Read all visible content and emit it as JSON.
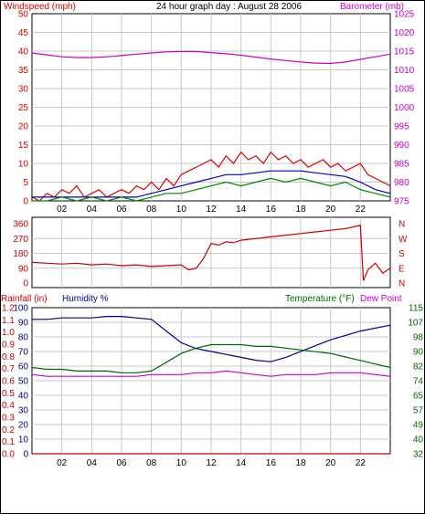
{
  "header": {
    "left_label": "Windspeed (mph)",
    "title": "24 hour graph day : August 28 2006",
    "right_label": "Barometer (mb)"
  },
  "bottom_header": {
    "rainfall_label": "Rainfall (in)",
    "humidity_label": "Humidity %",
    "temperature_label": "Temperature (°F)",
    "dewpoint_label": "Dew Point"
  },
  "colors": {
    "windspeed": "#dd0000",
    "wind_avg": "#0000cc",
    "wind_green": "#008800",
    "barometer": "#cc00cc",
    "direction": "#cc0000",
    "humidity": "#00008b",
    "temperature": "#006600",
    "dewpoint": "#cc00cc",
    "rainfall": "#cc0000",
    "grid": "#c8c8c8"
  },
  "x_ticks": [
    "02",
    "04",
    "06",
    "08",
    "10",
    "12",
    "14",
    "16",
    "18",
    "20",
    "22"
  ],
  "chart_data": [
    {
      "type": "line",
      "name": "wind_barometer",
      "title": "24 hour graph day : August 28 2006",
      "x_range": [
        0,
        24
      ],
      "left_axis": {
        "label": "Windspeed (mph)",
        "range": [
          0,
          50
        ],
        "ticks": [
          "0",
          "5",
          "10",
          "15",
          "20",
          "25",
          "30",
          "35",
          "40",
          "45",
          "50"
        ]
      },
      "right_axis": {
        "label": "Barometer (mb)",
        "range": [
          975,
          1025
        ],
        "ticks": [
          "975",
          "980",
          "985",
          "990",
          "995",
          "1000",
          "1005",
          "1010",
          "1015",
          "1020",
          "1025"
        ]
      },
      "series": [
        {
          "name": "Windspeed",
          "axis": "left",
          "color_key": "windspeed",
          "x": [
            0,
            0.5,
            1,
            1.5,
            2,
            2.5,
            3,
            3.5,
            4,
            4.5,
            5,
            5.5,
            6,
            6.5,
            7,
            7.5,
            8,
            8.5,
            9,
            9.5,
            10,
            10.5,
            11,
            11.5,
            12,
            12.5,
            13,
            13.5,
            14,
            14.5,
            15,
            15.5,
            16,
            16.5,
            17,
            17.5,
            18,
            18.5,
            19,
            19.5,
            20,
            20.5,
            21,
            21.5,
            22,
            22.5,
            23,
            23.5,
            24
          ],
          "y": [
            1,
            0,
            2,
            1,
            3,
            2,
            4,
            1,
            2,
            3,
            1,
            2,
            3,
            2,
            4,
            3,
            5,
            3,
            6,
            4,
            7,
            8,
            9,
            10,
            11,
            9,
            12,
            10,
            13,
            11,
            12,
            10,
            13,
            11,
            12,
            10,
            11,
            9,
            10,
            11,
            9,
            10,
            8,
            9,
            10,
            7,
            6,
            5,
            4
          ]
        },
        {
          "name": "Windspeed average",
          "axis": "left",
          "color_key": "wind_avg",
          "x": [
            0,
            1,
            2,
            3,
            4,
            5,
            6,
            7,
            8,
            9,
            10,
            11,
            12,
            13,
            14,
            15,
            16,
            17,
            18,
            19,
            20,
            21,
            22,
            23,
            24
          ],
          "y": [
            1,
            1,
            1,
            1,
            1,
            1,
            1,
            1,
            2,
            3,
            4,
            5,
            6,
            7,
            7,
            7.5,
            8,
            8,
            8,
            7.5,
            7,
            6.5,
            5,
            3,
            2
          ]
        },
        {
          "name": "Wind low",
          "axis": "left",
          "color_key": "wind_green",
          "x": [
            0,
            1,
            2,
            3,
            4,
            5,
            6,
            7,
            8,
            9,
            10,
            11,
            12,
            13,
            14,
            15,
            16,
            17,
            18,
            19,
            20,
            21,
            22,
            23,
            24
          ],
          "y": [
            0,
            0,
            1,
            0,
            1,
            0,
            1,
            0,
            1,
            2,
            2,
            3,
            4,
            5,
            4,
            5,
            6,
            5,
            6,
            5,
            4,
            5,
            3,
            2,
            1
          ]
        },
        {
          "name": "Barometer",
          "axis": "right",
          "color_key": "barometer",
          "x": [
            0,
            1,
            2,
            3,
            4,
            5,
            6,
            7,
            8,
            9,
            10,
            11,
            12,
            13,
            14,
            15,
            16,
            17,
            18,
            19,
            20,
            21,
            22,
            23,
            24
          ],
          "y": [
            1014.5,
            1014,
            1013.5,
            1013.3,
            1013.3,
            1013.5,
            1013.8,
            1014.2,
            1014.5,
            1014.8,
            1014.9,
            1014.9,
            1014.6,
            1014.3,
            1013.9,
            1013.4,
            1012.9,
            1012.5,
            1012.1,
            1011.8,
            1011.7,
            1012.1,
            1012.8,
            1013.5,
            1014.2
          ]
        }
      ]
    },
    {
      "type": "scatter",
      "name": "wind_direction",
      "x_range": [
        0,
        24
      ],
      "left_axis": {
        "range": [
          0,
          360
        ],
        "ticks": [
          "0",
          "90",
          "180",
          "270",
          "360"
        ]
      },
      "right_axis": {
        "ticks": [
          "N",
          "W",
          "S",
          "E",
          "N"
        ]
      },
      "series": [
        {
          "name": "Wind direction",
          "color_key": "direction",
          "x": [
            0,
            1,
            2,
            3,
            4,
            5,
            6,
            7,
            8,
            9,
            10,
            10.5,
            11,
            11.5,
            12,
            12.5,
            13,
            13.5,
            14,
            15,
            16,
            17,
            18,
            19,
            20,
            21,
            22,
            22.2,
            22.5,
            23,
            23.5,
            24
          ],
          "y": [
            125,
            120,
            115,
            120,
            110,
            115,
            105,
            110,
            100,
            105,
            110,
            80,
            90,
            150,
            240,
            230,
            250,
            245,
            260,
            270,
            280,
            290,
            300,
            310,
            320,
            330,
            350,
            15,
            80,
            120,
            60,
            90
          ]
        }
      ]
    },
    {
      "type": "line",
      "name": "temp_humidity_rain",
      "x_range": [
        0,
        24
      ],
      "rainfall_axis": {
        "label": "Rainfall (in)",
        "range": [
          0,
          1.2
        ],
        "ticks": [
          "0.0",
          "0.1",
          "0.2",
          "0.3",
          "0.4",
          "0.5",
          "0.6",
          "0.7",
          "0.8",
          "0.9",
          "1.0",
          "1.1",
          "1.2"
        ]
      },
      "humidity_axis": {
        "label": "Humidity %",
        "range": [
          0,
          100
        ],
        "ticks": [
          "0",
          "10",
          "20",
          "30",
          "40",
          "50",
          "60",
          "70",
          "80",
          "90",
          "100"
        ]
      },
      "temperature_axis": {
        "label": "Temperature (°F)",
        "range": [
          32,
          115
        ],
        "ticks": [
          "32",
          "40",
          "49",
          "57",
          "65",
          "74",
          "82",
          "90",
          "98",
          "107",
          "115"
        ]
      },
      "series": [
        {
          "name": "Humidity",
          "axis": "humidity",
          "color_key": "humidity",
          "x": [
            0,
            1,
            2,
            3,
            4,
            5,
            6,
            7,
            8,
            9,
            10,
            11,
            12,
            13,
            14,
            15,
            16,
            17,
            18,
            19,
            20,
            21,
            22,
            23,
            24
          ],
          "y": [
            92,
            92,
            93,
            93,
            93,
            94,
            94,
            93,
            92,
            84,
            76,
            72,
            70,
            68,
            66,
            64,
            63,
            66,
            70,
            74,
            78,
            81,
            84,
            86,
            88
          ]
        },
        {
          "name": "Temperature",
          "axis": "temperature",
          "color_key": "temperature",
          "x": [
            0,
            1,
            2,
            3,
            4,
            5,
            6,
            7,
            8,
            9,
            10,
            11,
            12,
            13,
            14,
            15,
            16,
            17,
            18,
            19,
            20,
            21,
            22,
            23,
            24
          ],
          "y": [
            81,
            80,
            80,
            79,
            79,
            79,
            78,
            78,
            79,
            84,
            89,
            92,
            94,
            94,
            94,
            93,
            93,
            92,
            91,
            90,
            89,
            87,
            85,
            83,
            81
          ]
        },
        {
          "name": "Dew Point",
          "axis": "temperature",
          "color_key": "dewpoint",
          "x": [
            0,
            1,
            2,
            3,
            4,
            5,
            6,
            7,
            8,
            9,
            10,
            11,
            12,
            13,
            14,
            15,
            16,
            17,
            18,
            19,
            20,
            21,
            22,
            23,
            24
          ],
          "y": [
            77,
            76,
            76,
            76,
            76,
            76,
            76,
            76,
            77,
            77,
            77,
            78,
            78,
            79,
            78,
            77,
            76,
            77,
            77,
            77,
            78,
            78,
            78,
            77,
            76
          ]
        },
        {
          "name": "Rainfall",
          "axis": "rainfall",
          "color_key": "rainfall",
          "x": [
            0,
            24
          ],
          "y": [
            0,
            0
          ]
        }
      ]
    }
  ]
}
